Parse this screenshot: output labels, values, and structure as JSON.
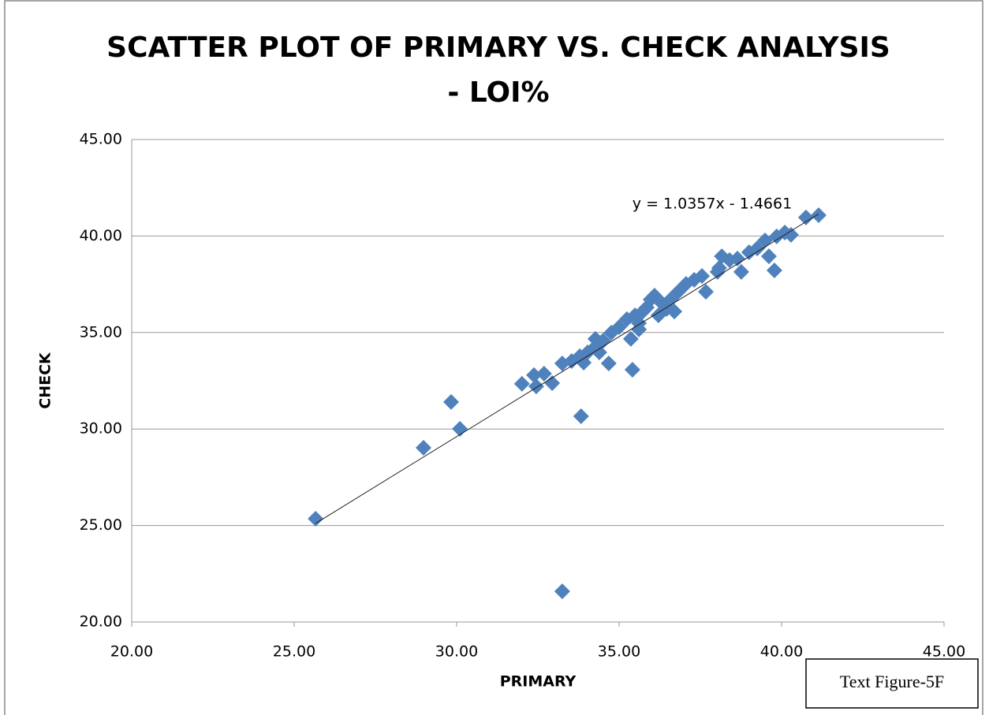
{
  "chart_data": {
    "type": "scatter",
    "title": [
      "SCATTER PLOT OF PRIMARY VS. CHECK ANALYSIS",
      "- LOI%"
    ],
    "x_label": "PRIMARY",
    "y_label": "CHECK",
    "annotation": "Text Figure-5F",
    "color": "#4f81bd",
    "grid": true,
    "xlim": [
      20,
      45
    ],
    "ylim": [
      20,
      45
    ],
    "xticks": [
      {
        "value": 20,
        "label": "20.00"
      },
      {
        "value": 25,
        "label": "25.00"
      },
      {
        "value": 30,
        "label": "30.00"
      },
      {
        "value": 35,
        "label": "35.00"
      },
      {
        "value": 40,
        "label": "40.00"
      },
      {
        "value": 45,
        "label": "45.00"
      }
    ],
    "yticks": [
      {
        "value": 20,
        "label": "20.00"
      },
      {
        "value": 25,
        "label": "25.00"
      },
      {
        "value": 30,
        "label": "30.00"
      },
      {
        "value": 35,
        "label": "35.00"
      },
      {
        "value": 40,
        "label": "40.00"
      },
      {
        "value": 45,
        "label": "45.00"
      }
    ],
    "trendline": {
      "label": "y = 1.0357x - 1.4661",
      "slope": 1.0357,
      "intercept": -1.4661
    },
    "x": [
      25.66,
      28.98,
      29.83,
      30.1,
      33.25,
      33.83,
      35.41,
      34.68,
      32.01,
      32.38,
      32.45,
      32.69,
      32.94,
      33.25,
      33.54,
      33.79,
      34.03,
      33.91,
      34.27,
      34.51,
      34.76,
      35.0,
      35.24,
      35.49,
      35.61,
      35.73,
      35.85,
      35.97,
      36.09,
      36.21,
      36.33,
      36.46,
      36.58,
      36.7,
      36.82,
      37.06,
      37.31,
      37.55,
      37.67,
      38.03,
      38.16,
      38.08,
      38.4,
      38.64,
      38.76,
      39.0,
      39.25,
      39.49,
      39.61,
      39.78,
      39.85,
      40.1,
      40.29,
      40.75,
      41.14,
      34.27,
      35.36,
      35.61,
      34.39
    ],
    "y": [
      25.35,
      29.03,
      31.4,
      30.01,
      21.59,
      30.66,
      33.07,
      33.4,
      32.34,
      32.79,
      32.21,
      32.87,
      32.38,
      33.4,
      33.52,
      33.77,
      33.97,
      33.44,
      34.26,
      34.58,
      34.99,
      35.28,
      35.69,
      35.89,
      35.48,
      36.09,
      36.3,
      36.71,
      36.91,
      35.89,
      36.5,
      36.22,
      36.71,
      36.09,
      37.11,
      37.52,
      37.73,
      37.93,
      37.11,
      38.14,
      38.95,
      38.34,
      38.75,
      38.83,
      38.14,
      39.16,
      39.36,
      39.77,
      38.95,
      38.22,
      39.98,
      40.18,
      40.06,
      40.96,
      41.08,
      34.67,
      34.67,
      35.16,
      33.97
    ]
  }
}
